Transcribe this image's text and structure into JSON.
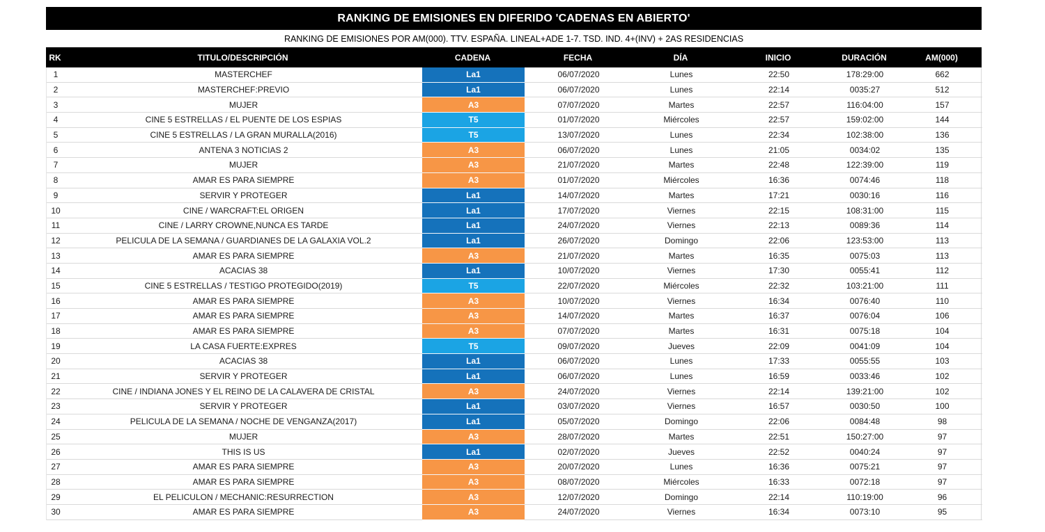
{
  "report": {
    "title": "RANKING DE EMISIONES EN DIFERIDO 'CADENAS EN ABIERTO'",
    "subtitle": "RANKING DE EMISIONES POR AM(000). TTV. ESPAÑA. LINEAL+ADE 1-7. TSD. IND. 4+(INV) + 2AS RESIDENCIAS"
  },
  "table": {
    "columns": [
      "RK",
      "TITULO/DESCRIPCIÓN",
      "CADENA",
      "FECHA",
      "DÍA",
      "INICIO",
      "DURACIÓN",
      "AM(000)"
    ],
    "channel_colors": {
      "La1": "#1572BB",
      "A3": "#F79646",
      "T5": "#1BA4E4"
    },
    "rows": [
      {
        "rk": "1",
        "title": "MASTERCHEF",
        "channel": "La1",
        "date": "06/07/2020",
        "day": "Lunes",
        "start": "22:50",
        "duration": "178:29:00",
        "am": "662"
      },
      {
        "rk": "2",
        "title": "MASTERCHEF:PREVIO",
        "channel": "La1",
        "date": "06/07/2020",
        "day": "Lunes",
        "start": "22:14",
        "duration": "0035:27",
        "am": "512"
      },
      {
        "rk": "3",
        "title": "MUJER",
        "channel": "A3",
        "date": "07/07/2020",
        "day": "Martes",
        "start": "22:57",
        "duration": "116:04:00",
        "am": "157"
      },
      {
        "rk": "4",
        "title": "CINE 5 ESTRELLAS / EL PUENTE DE LOS ESPIAS",
        "channel": "T5",
        "date": "01/07/2020",
        "day": "Miércoles",
        "start": "22:57",
        "duration": "159:02:00",
        "am": "144"
      },
      {
        "rk": "5",
        "title": "CINE 5 ESTRELLAS / LA GRAN MURALLA(2016)",
        "channel": "T5",
        "date": "13/07/2020",
        "day": "Lunes",
        "start": "22:34",
        "duration": "102:38:00",
        "am": "136"
      },
      {
        "rk": "6",
        "title": "ANTENA 3 NOTICIAS 2",
        "channel": "A3",
        "date": "06/07/2020",
        "day": "Lunes",
        "start": "21:05",
        "duration": "0034:02",
        "am": "135"
      },
      {
        "rk": "7",
        "title": "MUJER",
        "channel": "A3",
        "date": "21/07/2020",
        "day": "Martes",
        "start": "22:48",
        "duration": "122:39:00",
        "am": "119"
      },
      {
        "rk": "8",
        "title": "AMAR ES PARA SIEMPRE",
        "channel": "A3",
        "date": "01/07/2020",
        "day": "Miércoles",
        "start": "16:36",
        "duration": "0074:46",
        "am": "118"
      },
      {
        "rk": "9",
        "title": "SERVIR Y PROTEGER",
        "channel": "La1",
        "date": "14/07/2020",
        "day": "Martes",
        "start": "17:21",
        "duration": "0030:16",
        "am": "116"
      },
      {
        "rk": "10",
        "title": "CINE / WARCRAFT:EL ORIGEN",
        "channel": "La1",
        "date": "17/07/2020",
        "day": "Viernes",
        "start": "22:15",
        "duration": "108:31:00",
        "am": "115"
      },
      {
        "rk": "11",
        "title": "CINE / LARRY CROWNE,NUNCA ES TARDE",
        "channel": "La1",
        "date": "24/07/2020",
        "day": "Viernes",
        "start": "22:13",
        "duration": "0089:36",
        "am": "114"
      },
      {
        "rk": "12",
        "title": "PELICULA DE LA SEMANA / GUARDIANES DE LA GALAXIA VOL.2",
        "channel": "La1",
        "date": "26/07/2020",
        "day": "Domingo",
        "start": "22:06",
        "duration": "123:53:00",
        "am": "113"
      },
      {
        "rk": "13",
        "title": "AMAR ES PARA SIEMPRE",
        "channel": "A3",
        "date": "21/07/2020",
        "day": "Martes",
        "start": "16:35",
        "duration": "0075:03",
        "am": "113"
      },
      {
        "rk": "14",
        "title": "ACACIAS 38",
        "channel": "La1",
        "date": "10/07/2020",
        "day": "Viernes",
        "start": "17:30",
        "duration": "0055:41",
        "am": "112"
      },
      {
        "rk": "15",
        "title": "CINE 5 ESTRELLAS / TESTIGO PROTEGIDO(2019)",
        "channel": "T5",
        "date": "22/07/2020",
        "day": "Miércoles",
        "start": "22:32",
        "duration": "103:21:00",
        "am": "111"
      },
      {
        "rk": "16",
        "title": "AMAR ES PARA SIEMPRE",
        "channel": "A3",
        "date": "10/07/2020",
        "day": "Viernes",
        "start": "16:34",
        "duration": "0076:40",
        "am": "110"
      },
      {
        "rk": "17",
        "title": "AMAR ES PARA SIEMPRE",
        "channel": "A3",
        "date": "14/07/2020",
        "day": "Martes",
        "start": "16:37",
        "duration": "0076:04",
        "am": "106"
      },
      {
        "rk": "18",
        "title": "AMAR ES PARA SIEMPRE",
        "channel": "A3",
        "date": "07/07/2020",
        "day": "Martes",
        "start": "16:31",
        "duration": "0075:18",
        "am": "104"
      },
      {
        "rk": "19",
        "title": "LA CASA FUERTE:EXPRES",
        "channel": "T5",
        "date": "09/07/2020",
        "day": "Jueves",
        "start": "22:09",
        "duration": "0041:09",
        "am": "104"
      },
      {
        "rk": "20",
        "title": "ACACIAS 38",
        "channel": "La1",
        "date": "06/07/2020",
        "day": "Lunes",
        "start": "17:33",
        "duration": "0055:55",
        "am": "103"
      },
      {
        "rk": "21",
        "title": "SERVIR Y PROTEGER",
        "channel": "La1",
        "date": "06/07/2020",
        "day": "Lunes",
        "start": "16:59",
        "duration": "0033:46",
        "am": "102"
      },
      {
        "rk": "22",
        "title": "CINE / INDIANA JONES Y EL REINO DE LA CALAVERA DE CRISTAL",
        "channel": "A3",
        "date": "24/07/2020",
        "day": "Viernes",
        "start": "22:14",
        "duration": "139:21:00",
        "am": "102"
      },
      {
        "rk": "23",
        "title": "SERVIR Y PROTEGER",
        "channel": "La1",
        "date": "03/07/2020",
        "day": "Viernes",
        "start": "16:57",
        "duration": "0030:50",
        "am": "100"
      },
      {
        "rk": "24",
        "title": "PELICULA DE LA SEMANA / NOCHE DE VENGANZA(2017)",
        "channel": "La1",
        "date": "05/07/2020",
        "day": "Domingo",
        "start": "22:06",
        "duration": "0084:48",
        "am": "98"
      },
      {
        "rk": "25",
        "title": "MUJER",
        "channel": "A3",
        "date": "28/07/2020",
        "day": "Martes",
        "start": "22:51",
        "duration": "150:27:00",
        "am": "97"
      },
      {
        "rk": "26",
        "title": "THIS IS US",
        "channel": "La1",
        "date": "02/07/2020",
        "day": "Jueves",
        "start": "22:52",
        "duration": "0040:24",
        "am": "97"
      },
      {
        "rk": "27",
        "title": "AMAR ES PARA SIEMPRE",
        "channel": "A3",
        "date": "20/07/2020",
        "day": "Lunes",
        "start": "16:36",
        "duration": "0075:21",
        "am": "97"
      },
      {
        "rk": "28",
        "title": "AMAR ES PARA SIEMPRE",
        "channel": "A3",
        "date": "08/07/2020",
        "day": "Miércoles",
        "start": "16:33",
        "duration": "0072:18",
        "am": "97"
      },
      {
        "rk": "29",
        "title": "EL PELICULON / MECHANIC:RESURRECTION",
        "channel": "A3",
        "date": "12/07/2020",
        "day": "Domingo",
        "start": "22:14",
        "duration": "110:19:00",
        "am": "96"
      },
      {
        "rk": "30",
        "title": "AMAR ES PARA SIEMPRE",
        "channel": "A3",
        "date": "24/07/2020",
        "day": "Viernes",
        "start": "16:34",
        "duration": "0073:10",
        "am": "95"
      }
    ]
  }
}
